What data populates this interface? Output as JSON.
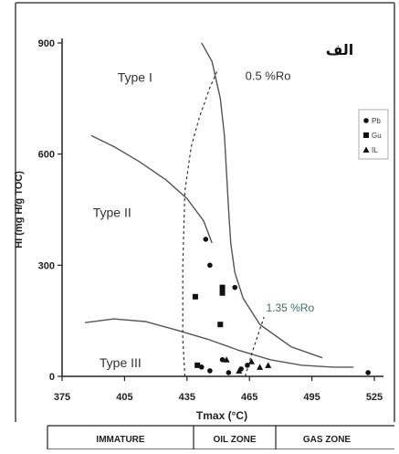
{
  "chart_data": {
    "type": "scatter",
    "title": "الف",
    "xlabel": "Tmax (°C)",
    "ylabel": "HI (mg H/g TOC)",
    "xlim": [
      375,
      525
    ],
    "ylim": [
      0,
      900
    ],
    "x_ticks": [
      "375",
      "405",
      "435",
      "465",
      "495",
      "525"
    ],
    "y_ticks": [
      "0",
      "300",
      "600",
      "900"
    ],
    "grid": false,
    "legend_position": "top-right",
    "series": [
      {
        "name": "Pb",
        "marker": "circle",
        "points": [
          {
            "x": 444,
            "y": 370
          },
          {
            "x": 446,
            "y": 300
          },
          {
            "x": 452,
            "y": 230
          },
          {
            "x": 458,
            "y": 240
          },
          {
            "x": 442,
            "y": 25
          },
          {
            "x": 446,
            "y": 15
          },
          {
            "x": 452,
            "y": 45
          },
          {
            "x": 455,
            "y": 10
          },
          {
            "x": 461,
            "y": 20
          },
          {
            "x": 464,
            "y": 30
          },
          {
            "x": 522,
            "y": 10
          }
        ]
      },
      {
        "name": "Gu",
        "marker": "square",
        "points": [
          {
            "x": 439,
            "y": 215
          },
          {
            "x": 452,
            "y": 240
          },
          {
            "x": 452,
            "y": 225
          },
          {
            "x": 451,
            "y": 140
          },
          {
            "x": 440,
            "y": 30
          }
        ]
      },
      {
        "name": "IL",
        "marker": "triangle",
        "points": [
          {
            "x": 454,
            "y": 45
          },
          {
            "x": 460,
            "y": 15
          },
          {
            "x": 466,
            "y": 40
          },
          {
            "x": 470,
            "y": 25
          },
          {
            "x": 474,
            "y": 30
          }
        ]
      }
    ],
    "curves": [
      {
        "label": "Type I",
        "points": [
          [
            442,
            900
          ],
          [
            447,
            850
          ],
          [
            451,
            750
          ],
          [
            453,
            650
          ],
          [
            454,
            550
          ],
          [
            455,
            450
          ],
          [
            456,
            360
          ],
          [
            458,
            280
          ],
          [
            462,
            210
          ],
          [
            470,
            140
          ],
          [
            485,
            80
          ],
          [
            500,
            50
          ]
        ]
      },
      {
        "label": "Type II",
        "points": [
          [
            389,
            650
          ],
          [
            400,
            620
          ],
          [
            412,
            580
          ],
          [
            425,
            530
          ],
          [
            435,
            480
          ],
          [
            443,
            420
          ],
          [
            447,
            360
          ]
        ]
      },
      {
        "label": "Type III",
        "points": [
          [
            386,
            145
          ],
          [
            400,
            155
          ],
          [
            415,
            148
          ],
          [
            430,
            125
          ],
          [
            445,
            100
          ],
          [
            460,
            70
          ],
          [
            475,
            45
          ],
          [
            490,
            30
          ],
          [
            505,
            25
          ],
          [
            515,
            25
          ]
        ]
      },
      {
        "label": "0.5 %Ro",
        "style": "dashed",
        "points": [
          [
            434,
            0
          ],
          [
            433,
            100
          ],
          [
            433,
            300
          ],
          [
            434,
            500
          ],
          [
            437,
            620
          ],
          [
            441,
            700
          ],
          [
            446,
            780
          ],
          [
            450,
            830
          ]
        ]
      },
      {
        "label": "1.35 %Ro",
        "style": "dashed",
        "points": [
          [
            463,
            0
          ],
          [
            466,
            60
          ],
          [
            469,
            110
          ],
          [
            472,
            160
          ]
        ]
      }
    ],
    "zones": [
      "IMMATURE",
      "OIL ZONE",
      "GAS ZONE"
    ]
  }
}
